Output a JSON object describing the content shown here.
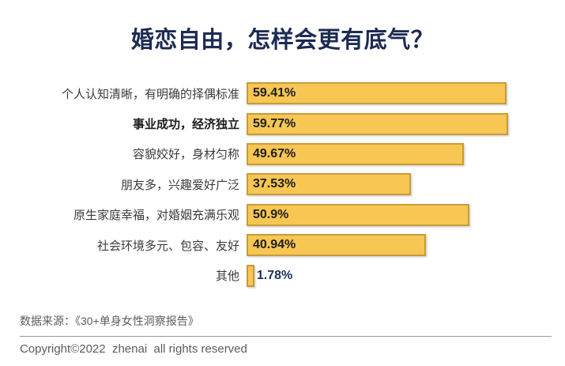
{
  "title": "婚恋自由，怎样会更有底气？",
  "chart_data": {
    "type": "bar",
    "orientation": "horizontal",
    "title": "婚恋自由，怎样会更有底气？",
    "categories": [
      "个人认知清晰，有明确的择偶标准",
      "事业成功，经济独立",
      "容貌姣好，身材匀称",
      "朋友多，兴趣爱好广泛",
      "原生家庭幸福，对婚姻充满乐观",
      "社会环境多元、包容、友好",
      "其他"
    ],
    "values": [
      59.41,
      59.77,
      49.67,
      37.53,
      50.9,
      40.94,
      1.78
    ],
    "value_labels": [
      "59.41%",
      "59.77%",
      "49.67%",
      "37.53%",
      "50.9%",
      "40.94%",
      "1.78%"
    ],
    "emphasized_category_index": 1,
    "xlim": [
      0,
      62
    ],
    "grid": false,
    "legend": false,
    "bar_color": "#F8C653",
    "bar_border_color": "#C79B3C",
    "title_color": "#1C2B52",
    "label_color": "#3B3B3B",
    "value_color_inside": "#1E1E1E",
    "value_color_outside": "#1C2F55"
  },
  "footer": {
    "source": "数据来源：《30+单身女性洞察报告》",
    "copyright": "Copyright©2022  zhenai  all rights reserved"
  }
}
